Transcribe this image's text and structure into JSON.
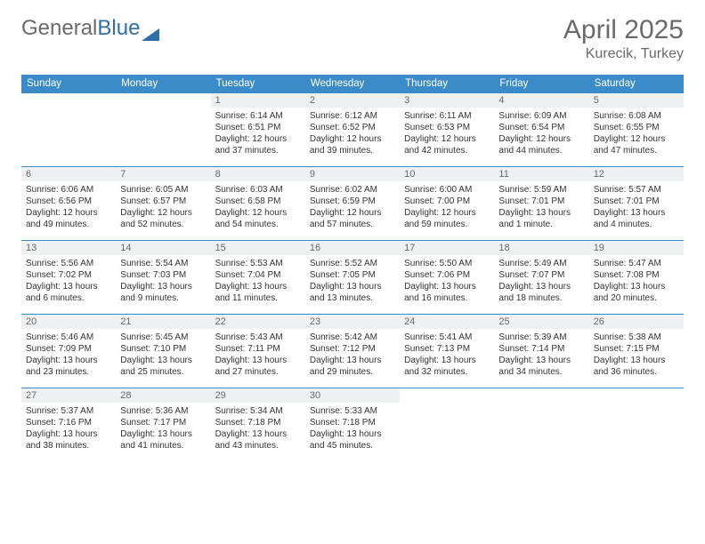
{
  "logo": {
    "text1": "General",
    "text2": "Blue"
  },
  "title": "April 2025",
  "location": "Kurecik, Turkey",
  "colors": {
    "header_bg": "#3b8bc8",
    "header_text": "#ffffff",
    "daynum_bg": "#eef0f1",
    "text_gray": "#6a6a6a",
    "body_text": "#333333",
    "border": "#3b8bc8"
  },
  "weekdays": [
    "Sunday",
    "Monday",
    "Tuesday",
    "Wednesday",
    "Thursday",
    "Friday",
    "Saturday"
  ],
  "weeks": [
    [
      null,
      null,
      {
        "n": "1",
        "sr": "6:14 AM",
        "ss": "6:51 PM",
        "dl": "12 hours and 37 minutes."
      },
      {
        "n": "2",
        "sr": "6:12 AM",
        "ss": "6:52 PM",
        "dl": "12 hours and 39 minutes."
      },
      {
        "n": "3",
        "sr": "6:11 AM",
        "ss": "6:53 PM",
        "dl": "12 hours and 42 minutes."
      },
      {
        "n": "4",
        "sr": "6:09 AM",
        "ss": "6:54 PM",
        "dl": "12 hours and 44 minutes."
      },
      {
        "n": "5",
        "sr": "6:08 AM",
        "ss": "6:55 PM",
        "dl": "12 hours and 47 minutes."
      }
    ],
    [
      {
        "n": "6",
        "sr": "6:06 AM",
        "ss": "6:56 PM",
        "dl": "12 hours and 49 minutes."
      },
      {
        "n": "7",
        "sr": "6:05 AM",
        "ss": "6:57 PM",
        "dl": "12 hours and 52 minutes."
      },
      {
        "n": "8",
        "sr": "6:03 AM",
        "ss": "6:58 PM",
        "dl": "12 hours and 54 minutes."
      },
      {
        "n": "9",
        "sr": "6:02 AM",
        "ss": "6:59 PM",
        "dl": "12 hours and 57 minutes."
      },
      {
        "n": "10",
        "sr": "6:00 AM",
        "ss": "7:00 PM",
        "dl": "12 hours and 59 minutes."
      },
      {
        "n": "11",
        "sr": "5:59 AM",
        "ss": "7:01 PM",
        "dl": "13 hours and 1 minute."
      },
      {
        "n": "12",
        "sr": "5:57 AM",
        "ss": "7:01 PM",
        "dl": "13 hours and 4 minutes."
      }
    ],
    [
      {
        "n": "13",
        "sr": "5:56 AM",
        "ss": "7:02 PM",
        "dl": "13 hours and 6 minutes."
      },
      {
        "n": "14",
        "sr": "5:54 AM",
        "ss": "7:03 PM",
        "dl": "13 hours and 9 minutes."
      },
      {
        "n": "15",
        "sr": "5:53 AM",
        "ss": "7:04 PM",
        "dl": "13 hours and 11 minutes."
      },
      {
        "n": "16",
        "sr": "5:52 AM",
        "ss": "7:05 PM",
        "dl": "13 hours and 13 minutes."
      },
      {
        "n": "17",
        "sr": "5:50 AM",
        "ss": "7:06 PM",
        "dl": "13 hours and 16 minutes."
      },
      {
        "n": "18",
        "sr": "5:49 AM",
        "ss": "7:07 PM",
        "dl": "13 hours and 18 minutes."
      },
      {
        "n": "19",
        "sr": "5:47 AM",
        "ss": "7:08 PM",
        "dl": "13 hours and 20 minutes."
      }
    ],
    [
      {
        "n": "20",
        "sr": "5:46 AM",
        "ss": "7:09 PM",
        "dl": "13 hours and 23 minutes."
      },
      {
        "n": "21",
        "sr": "5:45 AM",
        "ss": "7:10 PM",
        "dl": "13 hours and 25 minutes."
      },
      {
        "n": "22",
        "sr": "5:43 AM",
        "ss": "7:11 PM",
        "dl": "13 hours and 27 minutes."
      },
      {
        "n": "23",
        "sr": "5:42 AM",
        "ss": "7:12 PM",
        "dl": "13 hours and 29 minutes."
      },
      {
        "n": "24",
        "sr": "5:41 AM",
        "ss": "7:13 PM",
        "dl": "13 hours and 32 minutes."
      },
      {
        "n": "25",
        "sr": "5:39 AM",
        "ss": "7:14 PM",
        "dl": "13 hours and 34 minutes."
      },
      {
        "n": "26",
        "sr": "5:38 AM",
        "ss": "7:15 PM",
        "dl": "13 hours and 36 minutes."
      }
    ],
    [
      {
        "n": "27",
        "sr": "5:37 AM",
        "ss": "7:16 PM",
        "dl": "13 hours and 38 minutes."
      },
      {
        "n": "28",
        "sr": "5:36 AM",
        "ss": "7:17 PM",
        "dl": "13 hours and 41 minutes."
      },
      {
        "n": "29",
        "sr": "5:34 AM",
        "ss": "7:18 PM",
        "dl": "13 hours and 43 minutes."
      },
      {
        "n": "30",
        "sr": "5:33 AM",
        "ss": "7:18 PM",
        "dl": "13 hours and 45 minutes."
      },
      null,
      null,
      null
    ]
  ],
  "labels": {
    "sunrise": "Sunrise: ",
    "sunset": "Sunset: ",
    "daylight": "Daylight: "
  }
}
